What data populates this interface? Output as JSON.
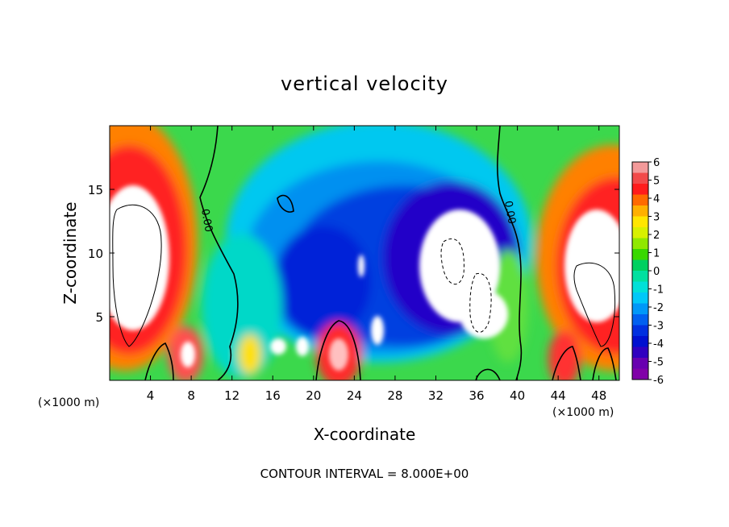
{
  "chart_data": {
    "type": "heatmap",
    "title": "vertical velocity",
    "xlabel": "X-coordinate",
    "ylabel": "Z-coordinate",
    "x_unit": "(×1000 m)",
    "xlim": [
      0,
      50
    ],
    "ylim": [
      0,
      20
    ],
    "x_ticks": [
      4,
      8,
      12,
      16,
      20,
      24,
      28,
      32,
      36,
      40,
      44,
      48
    ],
    "y_ticks": [
      5,
      10,
      15
    ],
    "colorbar": {
      "ticks": [
        6,
        5,
        4,
        3,
        2,
        1,
        0,
        -1,
        -2,
        -3,
        -4,
        -5,
        -6
      ],
      "min": -6,
      "max": 6,
      "colors_top_to_bottom": [
        "#f39a9a",
        "#f24a4a",
        "#ff1c1c",
        "#ff6a00",
        "#ffb000",
        "#ffe600",
        "#d8f000",
        "#90e800",
        "#38d800",
        "#00d060",
        "#00e0a0",
        "#00e0d8",
        "#00c8f8",
        "#0098f8",
        "#0060f0",
        "#0030e0",
        "#0010d0",
        "#3000c0",
        "#6800b0",
        "#8000a8"
      ]
    },
    "contour_labels": [
      "0.00",
      "0.00"
    ],
    "contour_interval_text": "CONTOUR INTERVAL = 8.000E+00",
    "zero_contour_x": [
      9.5,
      38.5
    ],
    "features": [
      {
        "kind": "updraft",
        "x": 2,
        "z": 10,
        "value": 7
      },
      {
        "kind": "updraft",
        "x": 48,
        "z": 10,
        "value": 7
      },
      {
        "kind": "updraft",
        "x": 22.5,
        "z": 2,
        "value": 4
      },
      {
        "kind": "downdraft",
        "x": 35,
        "z": 9,
        "value": -7
      },
      {
        "kind": "downdraft",
        "x": 27,
        "z": 10,
        "value": -5
      }
    ]
  }
}
